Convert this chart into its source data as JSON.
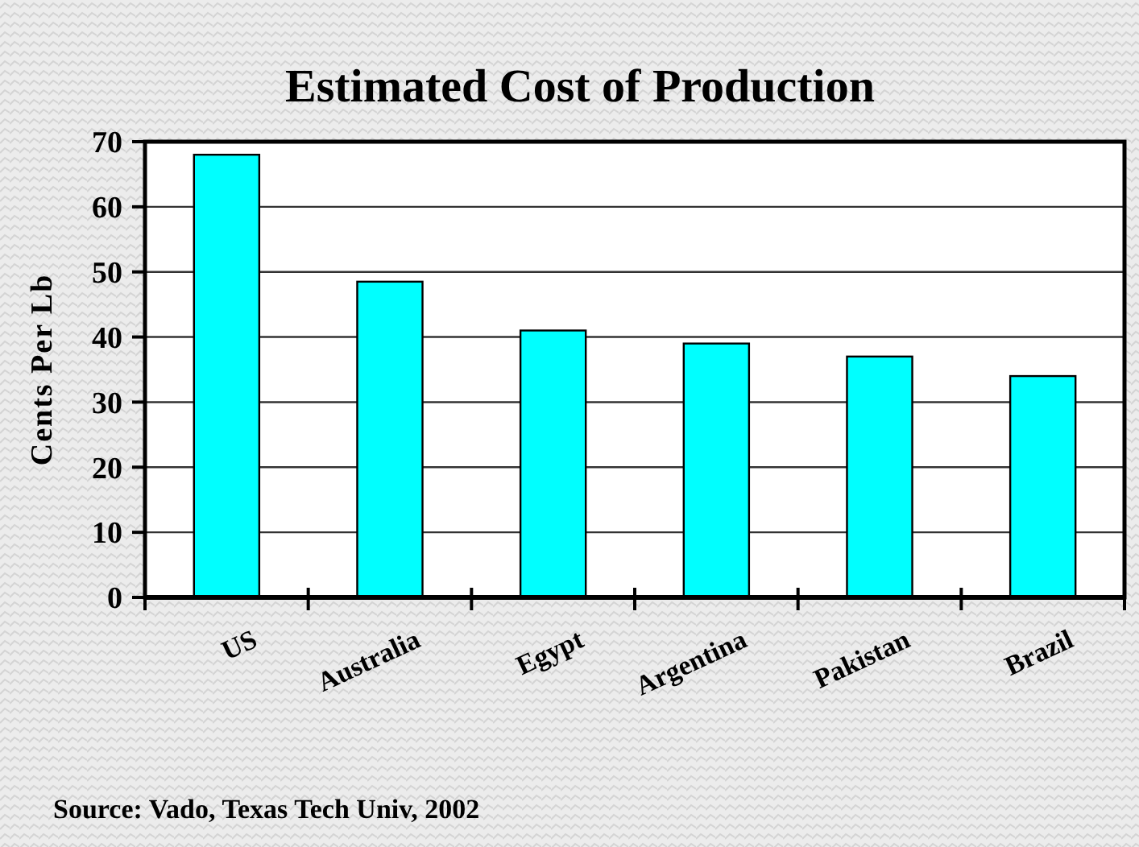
{
  "chart_data": {
    "type": "bar",
    "title": "Estimated Cost of Production",
    "ylabel": "Cents Per Lb",
    "categories": [
      "US",
      "Australia",
      "Egypt",
      "Argentina",
      "Pakistan",
      "Brazil"
    ],
    "values": [
      68,
      48.5,
      41,
      39,
      37,
      34
    ],
    "color": "#00ffff",
    "ylim": [
      0,
      70
    ],
    "yticks": [
      0,
      10,
      20,
      30,
      40,
      50,
      60,
      70
    ],
    "grid": "y",
    "annotations": [
      "Source: Vado, Texas Tech Univ, 2002"
    ]
  }
}
